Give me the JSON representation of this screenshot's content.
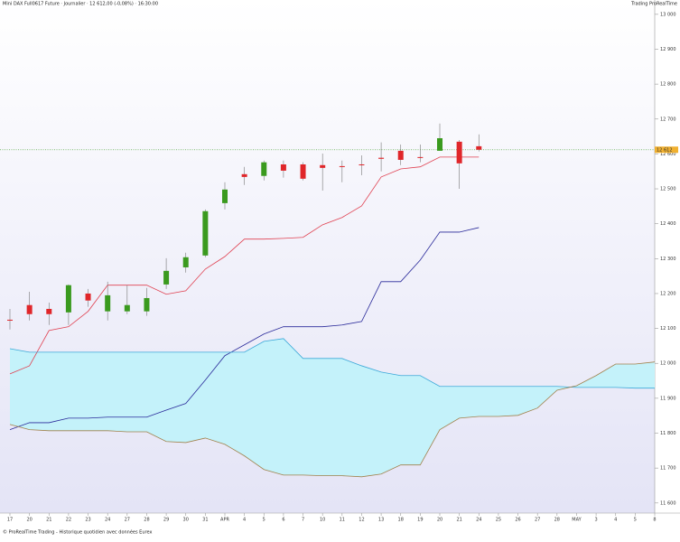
{
  "header": {
    "title": "Mini DAX Full0617 Future · Journalier · 12 612,00 (-0,08%) · 16:30:00",
    "brand": "Trading ProRealTime"
  },
  "footer": "© ProRealTime Trading - Historique quotidien avec données Eurex",
  "chart_data": {
    "type": "candlestick",
    "categories": [
      "17",
      "20",
      "21",
      "22",
      "23",
      "24",
      "27",
      "28",
      "29",
      "30",
      "31",
      "APR",
      "4",
      "5",
      "6",
      "7",
      "10",
      "11",
      "12",
      "13",
      "18",
      "19",
      "20",
      "21",
      "24",
      "25",
      "26",
      "27",
      "28",
      "MAY",
      "3",
      "4",
      "5",
      "8"
    ],
    "open": [
      12125,
      12167,
      12156,
      12146,
      12200,
      12149,
      12149,
      12149,
      12226,
      12275,
      12309,
      12459,
      12542,
      12537,
      12570,
      12570,
      12568,
      12565,
      12570,
      12589,
      12609,
      12591,
      12609,
      12635,
      12622,
      null,
      null,
      null,
      null,
      null,
      null,
      null,
      null,
      null
    ],
    "high": [
      12156,
      12205,
      12174,
      12226,
      12213,
      12234,
      12224,
      12216,
      12301,
      12317,
      12441,
      12519,
      12563,
      12581,
      12581,
      12576,
      12601,
      12581,
      12596,
      12633,
      12627,
      12627,
      12687,
      12640,
      12656,
      null,
      null,
      null,
      null,
      null,
      null,
      null,
      null,
      null
    ],
    "low": [
      12097,
      12123,
      12110,
      12110,
      12162,
      12123,
      12141,
      12136,
      12213,
      12260,
      12304,
      12441,
      12511,
      12524,
      12532,
      12524,
      12495,
      12519,
      12539,
      12550,
      12568,
      12576,
      12609,
      12500,
      12607,
      null,
      null,
      null,
      null,
      null,
      null,
      null,
      null,
      null
    ],
    "close": [
      12123,
      12141,
      12141,
      12224,
      12180,
      12195,
      12167,
      12187,
      12265,
      12304,
      12436,
      12498,
      12534,
      12576,
      12552,
      12529,
      12560,
      12563,
      12568,
      12586,
      12583,
      12589,
      12645,
      12573,
      12612,
      null,
      null,
      null,
      null,
      null,
      null,
      null,
      null,
      null
    ],
    "up_color": "#3a9a1e",
    "down_color": "#e0262a",
    "lines": [
      {
        "color": "#e04050",
        "values": [
          11970,
          11993,
          12094,
          12105,
          12149,
          12224,
          12224,
          12224,
          12198,
          12208,
          12270,
          12306,
          12356,
          12356,
          12358,
          12361,
          12397,
          12418,
          12451,
          12534,
          12557,
          12563,
          12591,
          12591,
          12591,
          null,
          null,
          null,
          null,
          null,
          null,
          null,
          null,
          null
        ]
      },
      {
        "color": "#2a2a9a",
        "values": [
          11810,
          11830,
          11830,
          11843,
          11843,
          11846,
          11846,
          11846,
          11866,
          11885,
          11952,
          12022,
          12053,
          12084,
          12105,
          12105,
          12105,
          12110,
          12120,
          12234,
          12234,
          12296,
          12376,
          12376,
          12389,
          null,
          null,
          null,
          null,
          null,
          null,
          null,
          null,
          null
        ]
      },
      {
        "color": "#3aa8d8",
        "values": [
          12042,
          12032,
          12032,
          12032,
          12032,
          12032,
          12032,
          12032,
          12032,
          12032,
          12032,
          12032,
          12032,
          12063,
          12071,
          12014,
          12014,
          12014,
          11993,
          11975,
          11965,
          11965,
          11934,
          11934,
          11934,
          11934,
          11934,
          11934,
          11934,
          11931,
          11931,
          11931,
          11929,
          11929
        ]
      },
      {
        "color": "#a0804a",
        "values": [
          11825,
          11810,
          11807,
          11807,
          11807,
          11807,
          11804,
          11804,
          11776,
          11773,
          11786,
          11768,
          11735,
          11696,
          11680,
          11680,
          11678,
          11678,
          11675,
          11683,
          11709,
          11709,
          11810,
          11843,
          11848,
          11848,
          11851,
          11872,
          11923,
          11936,
          11965,
          11998,
          11998,
          12004
        ]
      }
    ],
    "cloud_color": "#c4f2fa",
    "last_price": {
      "value": 12612,
      "label": "12 612"
    },
    "ylim": [
      11571,
      13041
    ],
    "yticks": [
      {
        "value": 11600,
        "label": "11 600"
      },
      {
        "value": 11700,
        "label": "11 700"
      },
      {
        "value": 11800,
        "label": "11 800"
      },
      {
        "value": 11900,
        "label": "11 900"
      },
      {
        "value": 12000,
        "label": "12 000"
      },
      {
        "value": 12100,
        "label": "12 100"
      },
      {
        "value": 12200,
        "label": "12 200"
      },
      {
        "value": 12300,
        "label": "12 300"
      },
      {
        "value": 12400,
        "label": "12 400"
      },
      {
        "value": 12500,
        "label": "12 500"
      },
      {
        "value": 12600,
        "label": "12 600"
      },
      {
        "value": 12700,
        "label": "12 700"
      },
      {
        "value": 12800,
        "label": "12 800"
      },
      {
        "value": 12900,
        "label": "12 900"
      },
      {
        "value": 13000,
        "label": "13 000"
      }
    ]
  }
}
